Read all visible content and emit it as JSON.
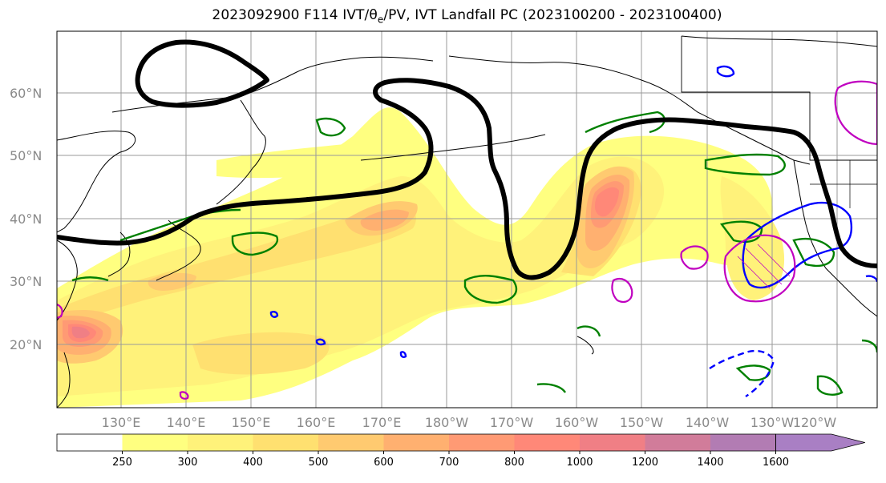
{
  "title_text": "2023092900 F114 IVT/θ",
  "title_sub": "e",
  "title_rest": "/PV, IVT Landfall PC (2023100200 - 2023100400)",
  "lat_labels": [
    "60°N",
    "50°N",
    "40°N",
    "30°N",
    "20°N"
  ],
  "lon_labels": [
    "130°E",
    "140°E",
    "150°E",
    "160°E",
    "170°E",
    "180°W",
    "170°W",
    "160°W",
    "150°W",
    "140°W",
    "130°W",
    "120°W"
  ],
  "colorbar": {
    "levels": [
      "250",
      "300",
      "400",
      "500",
      "600",
      "700",
      "800",
      "1000",
      "1200",
      "1400",
      "1600"
    ],
    "colors": [
      "#ffffff",
      "#ffff80",
      "#fff27a",
      "#ffe070",
      "#ffca70",
      "#ffb070",
      "#ff9a74",
      "#ff8878",
      "#f07f85",
      "#d17c9a",
      "#b27cb3",
      "#a97fc4"
    ]
  },
  "colors": {
    "pv_contour": "#000000",
    "theta_e_contour": "#008000",
    "blue_contour": "#0000ff",
    "magenta_contour": "#c000c0"
  }
}
